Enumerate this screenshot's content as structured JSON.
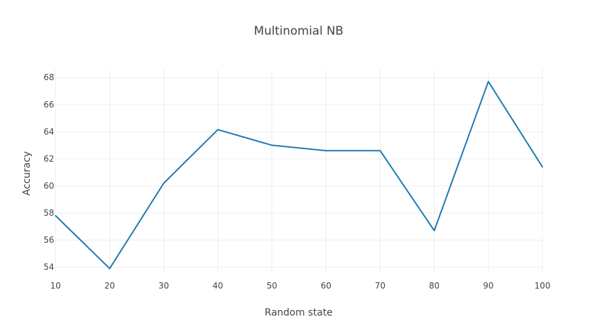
{
  "chart_data": {
    "type": "line",
    "title": "Multinomial NB",
    "xlabel": "Random state",
    "ylabel": "Accuracy",
    "x": [
      10,
      20,
      30,
      40,
      50,
      60,
      70,
      80,
      90,
      100
    ],
    "series": [
      {
        "values": [
          57.8,
          53.9,
          60.2,
          64.15,
          63.0,
          62.6,
          62.6,
          56.7,
          67.7,
          61.4
        ]
      }
    ],
    "xlim": [
      10,
      100
    ],
    "ylim": [
      53.5,
      68.6
    ],
    "xticks": [
      10,
      20,
      30,
      40,
      50,
      60,
      70,
      80,
      90,
      100
    ],
    "yticks": [
      54,
      56,
      58,
      60,
      62,
      64,
      66,
      68
    ],
    "grid": true,
    "line_color": "#1f77b4"
  }
}
